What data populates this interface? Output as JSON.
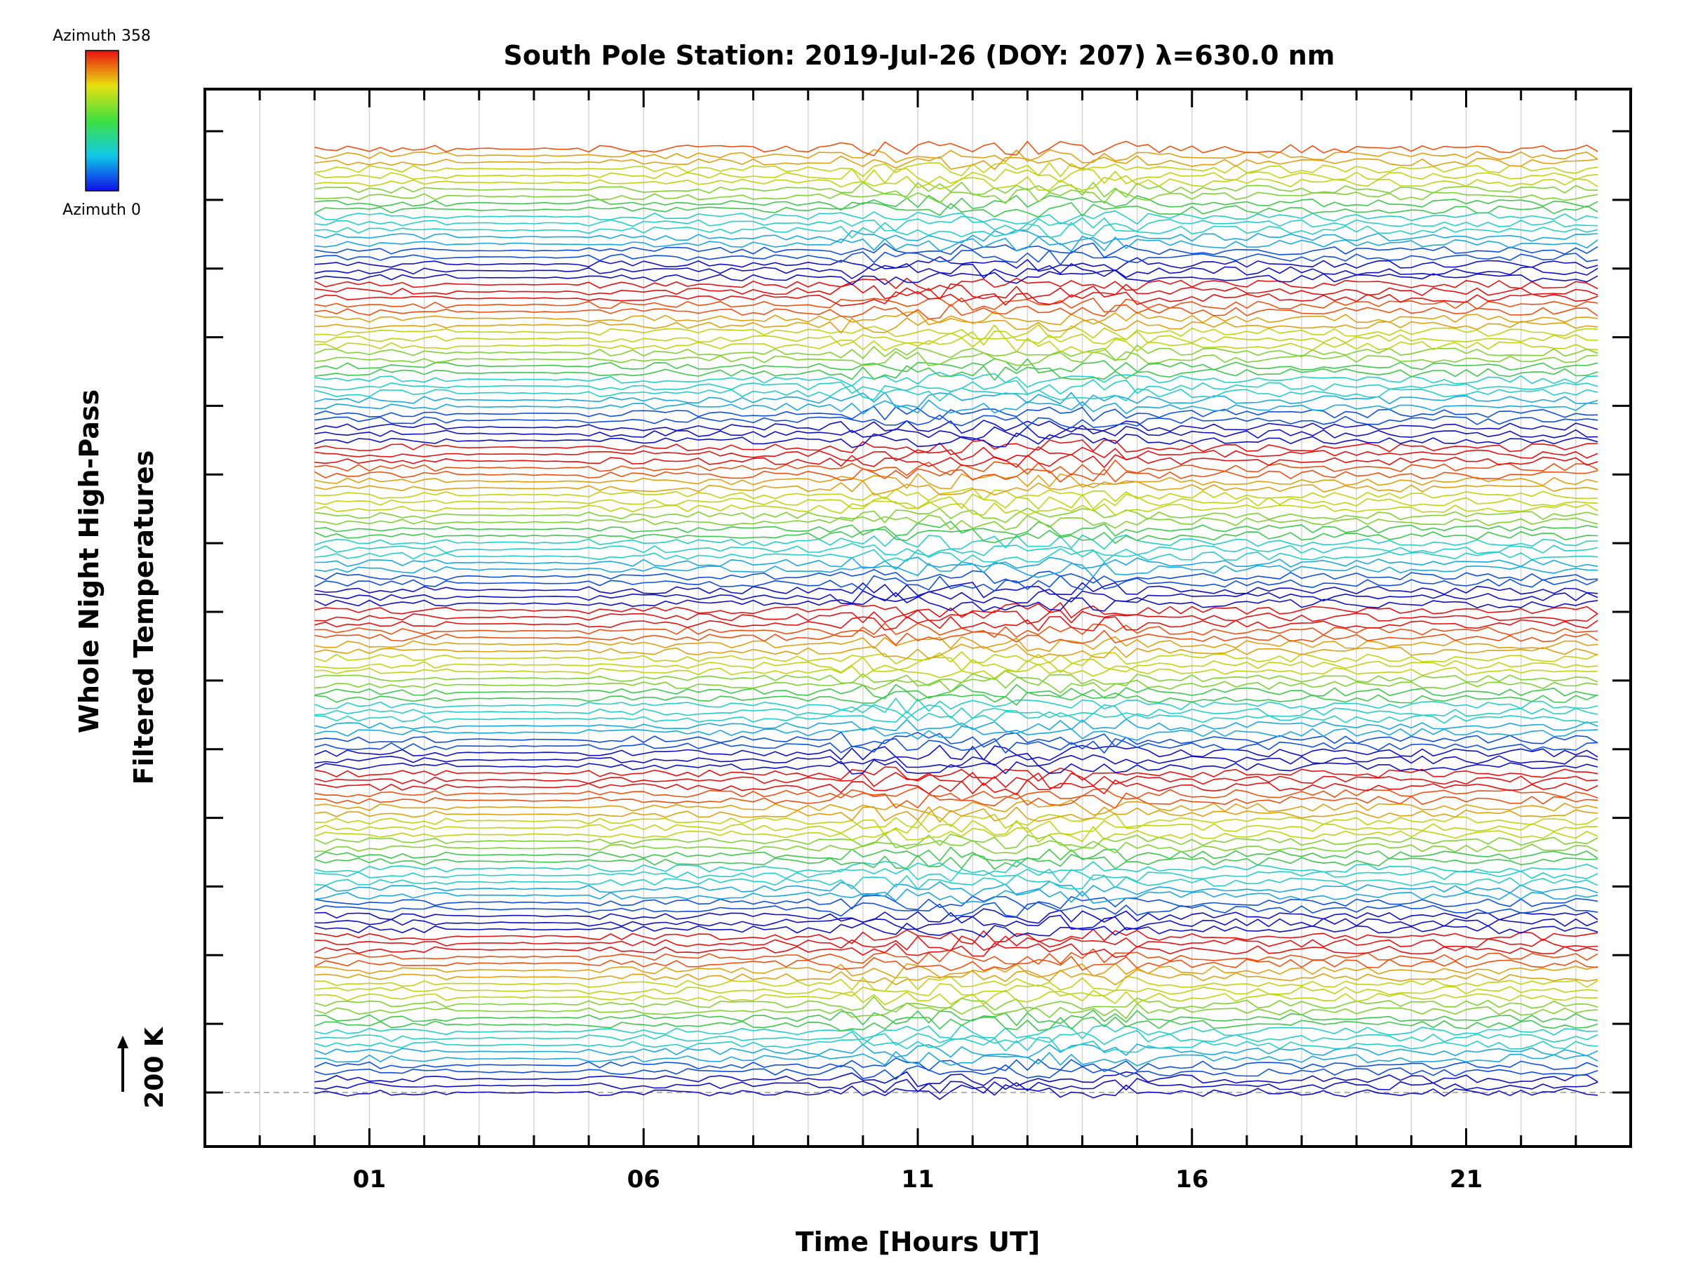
{
  "chart_data": {
    "type": "line",
    "title": "South Pole Station: 2019-Jul-26 (DOY: 207) λ=630.0 nm",
    "xlabel": "Time [Hours UT]",
    "ylabel_line1": "Whole Night High-Pass",
    "ylabel_line2": "Filtered Temperatures",
    "xlim": [
      -2,
      24
    ],
    "x_ticks": [
      1,
      6,
      11,
      16,
      21
    ],
    "x_tick_labels": [
      "01",
      "06",
      "11",
      "16",
      "21"
    ],
    "x_minor_step": 1,
    "y_major_tick_count": 15,
    "scale_bar_label": "200 K",
    "series_count": 140,
    "series_per_group": 24,
    "series_start_hour": 0,
    "series_end_hour": 23.5,
    "colorbar": {
      "top_label": "Azimuth 358",
      "bottom_label": "Azimuth 0",
      "min": 0,
      "max": 358
    },
    "series_color_stops": [
      "#1010c8",
      "#0f4fe0",
      "#1aa8e0",
      "#23d0c8",
      "#3ec84e",
      "#7fd232",
      "#c0d410",
      "#e0a010",
      "#f05010",
      "#e81010"
    ],
    "grid": true
  }
}
